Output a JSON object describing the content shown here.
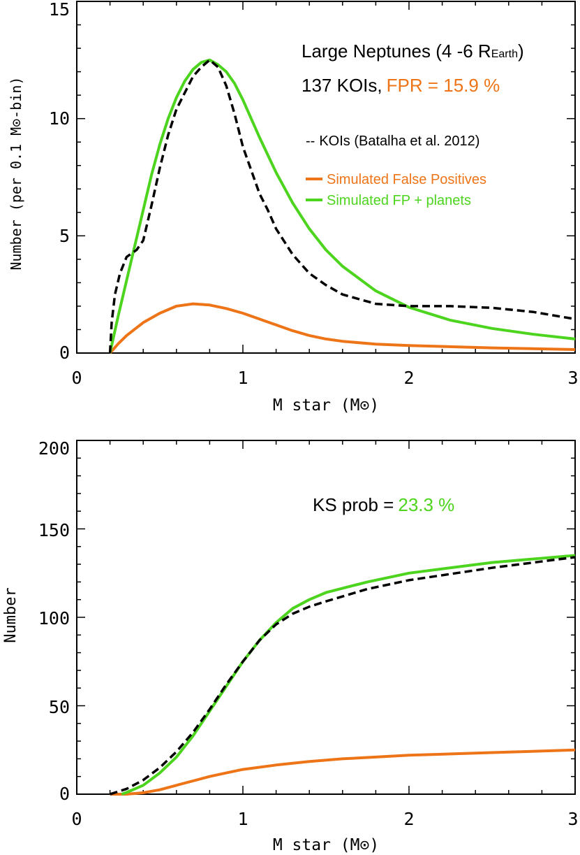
{
  "colors": {
    "koi": "#000000",
    "false_positives": "#EE7418",
    "fp_planets": "#4DD41E",
    "frame": "#000000"
  },
  "chart_data": [
    {
      "type": "line",
      "panel": "top",
      "title": "Large Neptunes (4 -6 R",
      "title_sub": "Earth",
      "title_end": ")",
      "summary_prefix": "137 KOIs,",
      "summary_highlight": "FPR = 15.9 %",
      "xlabel": "M star (M",
      "xlabel_sym": "⊙",
      "xlabel_end": ")",
      "ylabel": "Number (per 0.1 M",
      "ylabel_sym": "⊙",
      "ylabel_end": "-bin)",
      "xlim": [
        0,
        3
      ],
      "ylim": [
        0,
        15
      ],
      "xticks": [
        "0",
        "1",
        "2",
        "3"
      ],
      "yticks": [
        "0",
        "5",
        "10",
        "15"
      ],
      "legend_position": "right",
      "series": [
        {
          "name": "KOIs (Batalha et al. 2012)",
          "legend_prefix": "--",
          "style": "dashed",
          "x": [
            0.2,
            0.21,
            0.23,
            0.26,
            0.3,
            0.36,
            0.4,
            0.45,
            0.5,
            0.55,
            0.6,
            0.65,
            0.7,
            0.75,
            0.8,
            0.85,
            0.9,
            0.95,
            1.0,
            1.05,
            1.1,
            1.15,
            1.2,
            1.3,
            1.4,
            1.5,
            1.6,
            1.7,
            1.8,
            1.9,
            2.0,
            2.25,
            2.5,
            2.75,
            3.0
          ],
          "values": [
            0.0,
            1.3,
            2.5,
            3.4,
            4.1,
            4.4,
            4.8,
            6.3,
            7.9,
            9.3,
            10.4,
            11.1,
            11.8,
            12.2,
            12.5,
            12.2,
            11.4,
            10.2,
            8.8,
            7.8,
            6.8,
            6.1,
            5.3,
            4.2,
            3.4,
            2.9,
            2.5,
            2.3,
            2.1,
            2.05,
            2.0,
            2.0,
            1.93,
            1.75,
            1.45
          ]
        },
        {
          "name": "Simulated False Positives",
          "legend_prefix": "",
          "style": "solid",
          "x": [
            0.2,
            0.25,
            0.3,
            0.4,
            0.5,
            0.6,
            0.7,
            0.8,
            0.9,
            1.0,
            1.1,
            1.2,
            1.3,
            1.4,
            1.5,
            1.6,
            1.8,
            2.0,
            2.5,
            3.0
          ],
          "values": [
            0.0,
            0.4,
            0.75,
            1.3,
            1.7,
            2.0,
            2.1,
            2.05,
            1.9,
            1.7,
            1.45,
            1.2,
            0.95,
            0.75,
            0.6,
            0.5,
            0.38,
            0.32,
            0.22,
            0.15
          ]
        },
        {
          "name": "Simulated FP + planets",
          "legend_prefix": "",
          "style": "solid",
          "x": [
            0.2,
            0.25,
            0.3,
            0.35,
            0.4,
            0.45,
            0.5,
            0.55,
            0.6,
            0.65,
            0.7,
            0.75,
            0.8,
            0.85,
            0.9,
            0.95,
            1.0,
            1.1,
            1.2,
            1.3,
            1.4,
            1.5,
            1.6,
            1.8,
            2.0,
            2.25,
            2.5,
            2.75,
            3.0
          ],
          "values": [
            0.0,
            1.6,
            3.1,
            4.6,
            6.1,
            7.6,
            8.9,
            10.0,
            10.9,
            11.6,
            12.1,
            12.4,
            12.5,
            12.3,
            12.0,
            11.5,
            10.8,
            9.2,
            7.7,
            6.4,
            5.3,
            4.4,
            3.7,
            2.65,
            1.95,
            1.4,
            1.05,
            0.8,
            0.6
          ]
        }
      ]
    },
    {
      "type": "line",
      "panel": "bottom",
      "annotation_prefix": "KS prob =",
      "annotation_value": "23.3 %",
      "xlabel": "M star (M",
      "xlabel_sym": "⊙",
      "xlabel_end": ")",
      "ylabel": "Number",
      "xlim": [
        0,
        3
      ],
      "ylim": [
        0,
        200
      ],
      "xticks": [
        "0",
        "1",
        "2",
        "3"
      ],
      "yticks": [
        "0",
        "50",
        "100",
        "150",
        "200"
      ],
      "series": [
        {
          "name": "KOIs (Batalha et al. 2012)",
          "style": "dashed",
          "x": [
            0.2,
            0.3,
            0.4,
            0.5,
            0.6,
            0.7,
            0.8,
            0.9,
            1.0,
            1.1,
            1.2,
            1.3,
            1.4,
            1.5,
            1.75,
            2.0,
            2.5,
            3.0
          ],
          "values": [
            0,
            3,
            8,
            15,
            24,
            35,
            48,
            62,
            75,
            87,
            96,
            102,
            106,
            109,
            116,
            121,
            128,
            134
          ]
        },
        {
          "name": "Simulated False Positives",
          "style": "solid",
          "x": [
            0.2,
            0.3,
            0.4,
            0.5,
            0.6,
            0.7,
            0.8,
            0.9,
            1.0,
            1.2,
            1.4,
            1.6,
            1.8,
            2.0,
            2.5,
            3.0
          ],
          "values": [
            0,
            0,
            0.8,
            2.5,
            5,
            7.5,
            10,
            12,
            14,
            16.5,
            18.5,
            20,
            21,
            22,
            23.5,
            25
          ]
        },
        {
          "name": "Simulated FP + planets",
          "style": "solid",
          "x": [
            0.27,
            0.3,
            0.4,
            0.5,
            0.6,
            0.7,
            0.8,
            0.9,
            1.0,
            1.1,
            1.2,
            1.3,
            1.4,
            1.5,
            1.75,
            2.0,
            2.5,
            3.0
          ],
          "values": [
            0,
            1,
            5,
            12,
            21,
            33,
            47,
            61,
            75,
            87,
            97,
            105,
            110,
            114,
            120,
            125,
            131,
            135
          ]
        }
      ]
    }
  ]
}
